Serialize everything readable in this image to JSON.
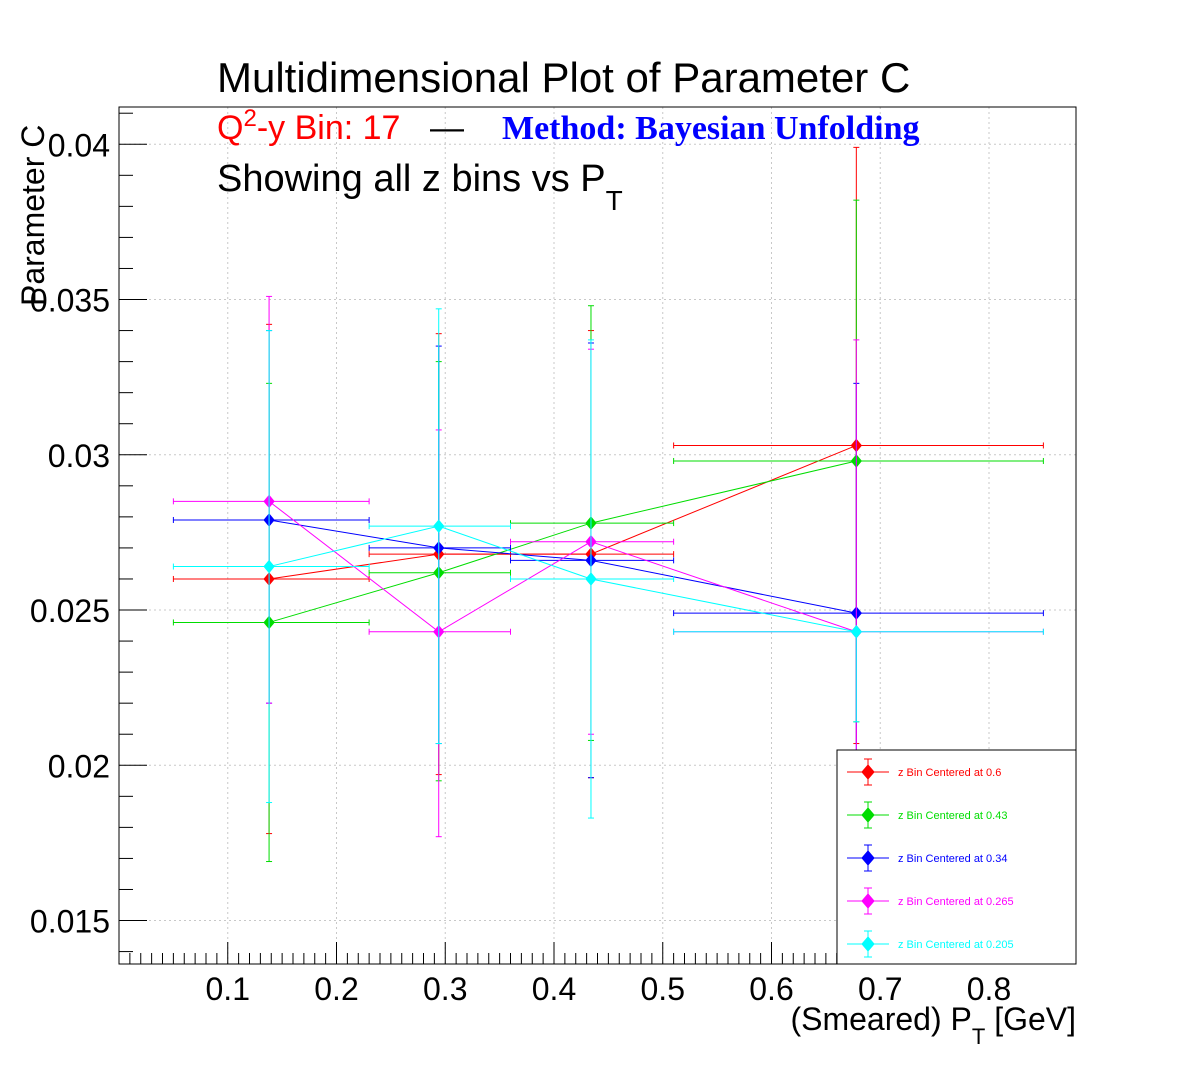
{
  "colors": {
    "series": [
      "#ff0000",
      "#00dd00",
      "#0000ff",
      "#ff00ff",
      "#00ffff"
    ],
    "method": "#0000ff",
    "subtitle_bin": "#ff0000",
    "grid": "#c8c8c8"
  },
  "title": "Multidimensional Plot of Parameter C",
  "subtitle": {
    "bin_prefix": "Q",
    "bin_sup": "2",
    "bin_rest": "-y Bin: 17",
    "dash": "—",
    "method": "Method: Bayesian Unfolding"
  },
  "subtitle2": {
    "main": "Showing all z bins vs P",
    "sub": "T"
  },
  "chart_data": {
    "type": "scatter",
    "xlabel": {
      "main": "(Smeared) P",
      "sub": "T",
      "unit": " [GeV]"
    },
    "ylabel": "Parameter C",
    "xlim": [
      0.0,
      0.88
    ],
    "ylim": [
      0.0136,
      0.0412
    ],
    "grid": true,
    "legend_position": "bottom-right",
    "xticks": [
      "0.1",
      "0.2",
      "0.3",
      "0.4",
      "0.5",
      "0.6",
      "0.7",
      "0.8"
    ],
    "xtick_values": [
      0.1,
      0.2,
      0.3,
      0.4,
      0.5,
      0.6,
      0.7,
      0.8
    ],
    "yticks": [
      "0.015",
      "0.02",
      "0.025",
      "0.03",
      "0.035",
      "0.04"
    ],
    "ytick_values": [
      0.015,
      0.02,
      0.025,
      0.03,
      0.035,
      0.04
    ],
    "series": [
      {
        "name": "z Bin Centered at 0.6",
        "points": [
          {
            "x": 0.138,
            "y": 0.026,
            "xlo": 0.05,
            "xhi": 0.23,
            "ylo": 0.0178,
            "yhi": 0.0342
          },
          {
            "x": 0.294,
            "y": 0.0268,
            "xlo": 0.23,
            "xhi": 0.36,
            "ylo": 0.0197,
            "yhi": 0.0339
          },
          {
            "x": 0.434,
            "y": 0.0268,
            "xlo": 0.36,
            "xhi": 0.51,
            "ylo": 0.0196,
            "yhi": 0.034
          },
          {
            "x": 0.678,
            "y": 0.0303,
            "xlo": 0.51,
            "xhi": 0.85,
            "ylo": 0.0207,
            "yhi": 0.0399
          }
        ]
      },
      {
        "name": "z Bin Centered at 0.43",
        "points": [
          {
            "x": 0.138,
            "y": 0.0246,
            "xlo": 0.05,
            "xhi": 0.23,
            "ylo": 0.0169,
            "yhi": 0.0323
          },
          {
            "x": 0.294,
            "y": 0.0262,
            "xlo": 0.23,
            "xhi": 0.36,
            "ylo": 0.0195,
            "yhi": 0.033
          },
          {
            "x": 0.434,
            "y": 0.0278,
            "xlo": 0.36,
            "xhi": 0.51,
            "ylo": 0.0208,
            "yhi": 0.0348
          },
          {
            "x": 0.678,
            "y": 0.0298,
            "xlo": 0.51,
            "xhi": 0.85,
            "ylo": 0.0214,
            "yhi": 0.0382
          }
        ]
      },
      {
        "name": "z Bin Centered at 0.34",
        "points": [
          {
            "x": 0.138,
            "y": 0.0279,
            "xlo": 0.05,
            "xhi": 0.23,
            "ylo": 0.022,
            "yhi": 0.034
          },
          {
            "x": 0.294,
            "y": 0.027,
            "xlo": 0.23,
            "xhi": 0.36,
            "ylo": 0.0207,
            "yhi": 0.0335
          },
          {
            "x": 0.434,
            "y": 0.0266,
            "xlo": 0.36,
            "xhi": 0.51,
            "ylo": 0.0196,
            "yhi": 0.0336
          },
          {
            "x": 0.678,
            "y": 0.0249,
            "xlo": 0.51,
            "xhi": 0.85,
            "ylo": 0.0175,
            "yhi": 0.0323
          }
        ]
      },
      {
        "name": "z Bin Centered at 0.265",
        "points": [
          {
            "x": 0.138,
            "y": 0.0285,
            "xlo": 0.05,
            "xhi": 0.23,
            "ylo": 0.022,
            "yhi": 0.0351
          },
          {
            "x": 0.294,
            "y": 0.0243,
            "xlo": 0.23,
            "xhi": 0.36,
            "ylo": 0.0177,
            "yhi": 0.0308
          },
          {
            "x": 0.434,
            "y": 0.0272,
            "xlo": 0.36,
            "xhi": 0.51,
            "ylo": 0.021,
            "yhi": 0.0334
          },
          {
            "x": 0.678,
            "y": 0.0243,
            "xlo": 0.51,
            "xhi": 0.85,
            "ylo": 0.017,
            "yhi": 0.0337
          }
        ]
      },
      {
        "name": "z Bin Centered at 0.205",
        "points": [
          {
            "x": 0.138,
            "y": 0.0264,
            "xlo": 0.05,
            "xhi": 0.23,
            "ylo": 0.0188,
            "yhi": 0.034
          },
          {
            "x": 0.294,
            "y": 0.0277,
            "xlo": 0.23,
            "xhi": 0.36,
            "ylo": 0.0207,
            "yhi": 0.0347
          },
          {
            "x": 0.434,
            "y": 0.026,
            "xlo": 0.36,
            "xhi": 0.51,
            "ylo": 0.0183,
            "yhi": 0.0337
          },
          {
            "x": 0.678,
            "y": 0.0243,
            "xlo": 0.51,
            "xhi": 0.85,
            "ylo": 0.0214,
            "yhi": 0.0243
          }
        ]
      }
    ]
  }
}
